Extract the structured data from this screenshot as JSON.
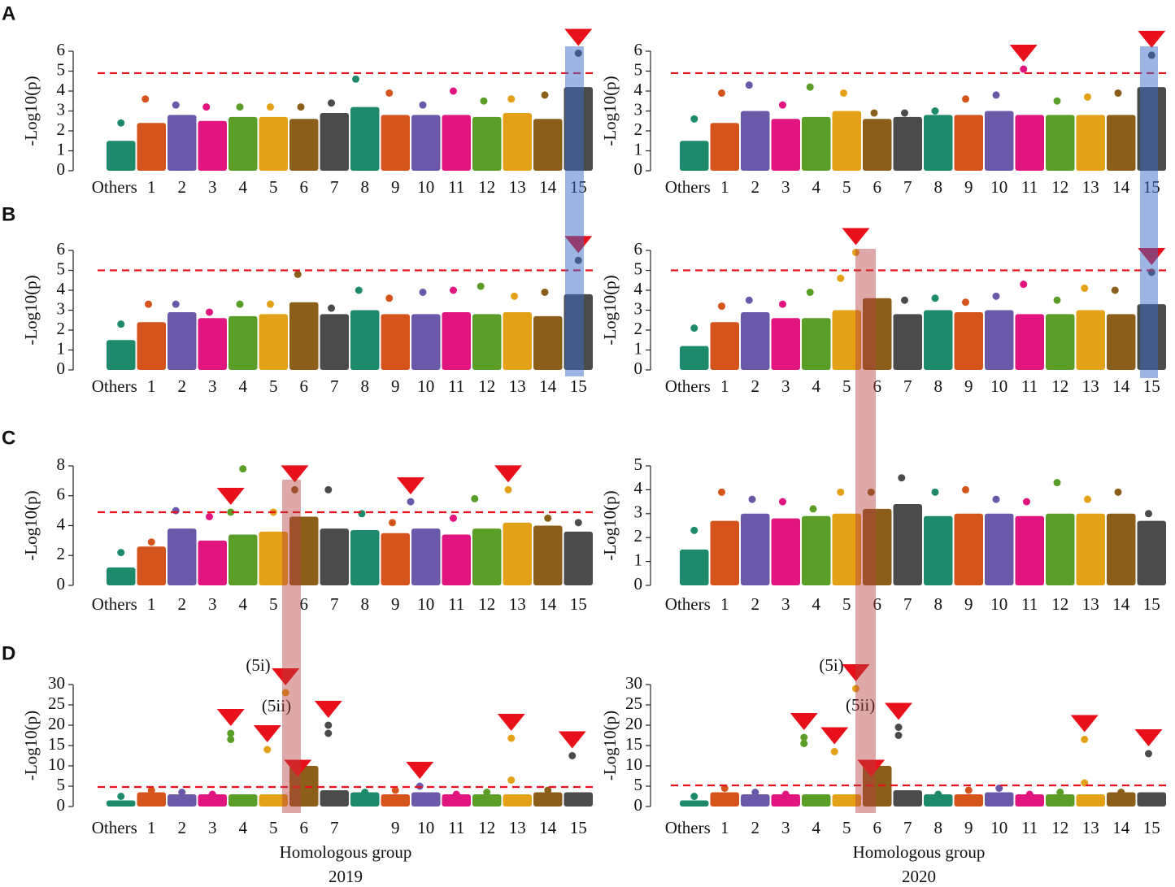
{
  "chart_data": [
    {
      "type": "manhattan",
      "panel": "A",
      "y_label": "-Log10(p)",
      "categories": [
        "Others",
        "1",
        "2",
        "3",
        "4",
        "5",
        "6",
        "7",
        "8",
        "9",
        "10",
        "11",
        "12",
        "13",
        "14",
        "15"
      ],
      "colors": [
        "#1d8a6b",
        "#d4541b",
        "#6a58a8",
        "#e0157f",
        "#5a9e28",
        "#e2a116",
        "#8b5e1a",
        "#4b4b4b",
        "#1d8a6b",
        "#d4541b",
        "#6a58a8",
        "#e0157f",
        "#5a9e28",
        "#e2a116",
        "#8b5e1a",
        "#4b4b4b"
      ],
      "band_values": [
        1.5,
        2.4,
        2.8,
        2.5,
        2.7,
        2.7,
        2.6,
        2.9,
        3.2,
        2.8,
        2.8,
        2.8,
        2.7,
        2.9,
        2.6,
        4.2
      ],
      "points": {
        "x": [
          0.5,
          1.3,
          2.3,
          3.3,
          4.4,
          5.4,
          6.4,
          7.4,
          8.2,
          9.3,
          10.4,
          11.4,
          12.4,
          13.3,
          14.4,
          15.5
        ],
        "y": [
          2.4,
          3.6,
          3.3,
          3.2,
          3.2,
          3.2,
          3.2,
          3.4,
          4.6,
          3.9,
          3.3,
          4.0,
          3.5,
          3.6,
          3.8,
          5.9
        ]
      },
      "threshold": 4.9,
      "xlim": [
        0,
        16
      ],
      "ylim": [
        0,
        6
      ],
      "yticks": [
        0,
        1,
        2,
        3,
        4,
        5,
        6
      ]
    },
    {
      "type": "manhattan",
      "y_label": "-Log10(p)",
      "categories": [
        "Others",
        "1",
        "2",
        "3",
        "4",
        "5",
        "6",
        "7",
        "8",
        "9",
        "10",
        "11",
        "12",
        "13",
        "14",
        "15"
      ],
      "colors": [
        "#1d8a6b",
        "#d4541b",
        "#6a58a8",
        "#e0157f",
        "#5a9e28",
        "#e2a116",
        "#8b5e1a",
        "#4b4b4b",
        "#1d8a6b",
        "#d4541b",
        "#6a58a8",
        "#e0157f",
        "#5a9e28",
        "#e2a116",
        "#8b5e1a",
        "#4b4b4b"
      ],
      "band_values": [
        1.5,
        2.4,
        3.0,
        2.6,
        2.7,
        3.0,
        2.6,
        2.7,
        2.8,
        2.8,
        3.0,
        2.8,
        2.8,
        2.8,
        2.8,
        4.2
      ],
      "points": {
        "x": [
          0.5,
          1.4,
          2.3,
          3.4,
          4.3,
          5.4,
          6.4,
          7.4,
          8.4,
          9.4,
          10.4,
          11.3,
          12.4,
          13.4,
          14.4,
          15.5
        ],
        "y": [
          2.6,
          3.9,
          4.3,
          3.3,
          4.2,
          3.9,
          2.9,
          2.9,
          3.0,
          3.6,
          3.8,
          5.1,
          3.5,
          3.7,
          3.9,
          5.8
        ]
      },
      "threshold": 4.9,
      "xlim": [
        0,
        16
      ],
      "ylim": [
        0,
        6
      ],
      "yticks": [
        0,
        1,
        2,
        3,
        4,
        5,
        6
      ]
    },
    {
      "type": "manhattan",
      "panel": "B",
      "y_label": "-Log10(p)",
      "categories": [
        "Others",
        "1",
        "2",
        "3",
        "4",
        "5",
        "6",
        "7",
        "8",
        "9",
        "10",
        "11",
        "12",
        "13",
        "14",
        "15"
      ],
      "colors": [
        "#1d8a6b",
        "#d4541b",
        "#6a58a8",
        "#e0157f",
        "#5a9e28",
        "#e2a116",
        "#8b5e1a",
        "#4b4b4b",
        "#1d8a6b",
        "#d4541b",
        "#6a58a8",
        "#e0157f",
        "#5a9e28",
        "#e2a116",
        "#8b5e1a",
        "#4b4b4b"
      ],
      "band_values": [
        1.5,
        2.4,
        2.9,
        2.6,
        2.7,
        2.8,
        3.4,
        2.8,
        3.0,
        2.8,
        2.8,
        2.9,
        2.8,
        2.9,
        2.7,
        3.8
      ],
      "points": {
        "x": [
          0.5,
          1.4,
          2.3,
          3.4,
          4.4,
          5.4,
          6.3,
          7.4,
          8.3,
          9.3,
          10.4,
          11.4,
          12.3,
          13.4,
          14.4,
          15.5
        ],
        "y": [
          2.3,
          3.3,
          3.3,
          2.9,
          3.3,
          3.3,
          4.8,
          3.1,
          4.0,
          3.6,
          3.9,
          4.0,
          4.2,
          3.7,
          3.9,
          5.5
        ]
      },
      "threshold": 5.0,
      "xlim": [
        0,
        16
      ],
      "ylim": [
        0,
        6
      ],
      "yticks": [
        0,
        1,
        2,
        3,
        4,
        5,
        6
      ]
    },
    {
      "type": "manhattan",
      "y_label": "-Log10(p)",
      "categories": [
        "Others",
        "1",
        "2",
        "3",
        "4",
        "5",
        "6",
        "7",
        "8",
        "9",
        "10",
        "11",
        "12",
        "13",
        "14",
        "15"
      ],
      "colors": [
        "#1d8a6b",
        "#d4541b",
        "#6a58a8",
        "#e0157f",
        "#5a9e28",
        "#e2a116",
        "#8b5e1a",
        "#4b4b4b",
        "#1d8a6b",
        "#d4541b",
        "#6a58a8",
        "#e0157f",
        "#5a9e28",
        "#e2a116",
        "#8b5e1a",
        "#4b4b4b"
      ],
      "band_values": [
        1.2,
        2.4,
        2.9,
        2.6,
        2.6,
        3.0,
        3.6,
        2.8,
        3.0,
        2.9,
        3.0,
        2.8,
        2.8,
        3.0,
        2.8,
        3.3
      ],
      "points": {
        "x": [
          0.5,
          1.4,
          2.3,
          3.4,
          4.3,
          5.3,
          5.8,
          7.4,
          8.4,
          9.4,
          10.4,
          11.3,
          12.4,
          13.3,
          14.3,
          15.5
        ],
        "y": [
          2.1,
          3.2,
          3.5,
          3.3,
          3.9,
          4.6,
          5.9,
          3.5,
          3.6,
          3.4,
          3.7,
          4.3,
          3.5,
          4.1,
          4.0,
          4.9
        ]
      },
      "threshold": 5.0,
      "xlim": [
        0,
        16
      ],
      "ylim": [
        0,
        6
      ],
      "yticks": [
        0,
        1,
        2,
        3,
        4,
        5,
        6
      ]
    },
    {
      "type": "manhattan",
      "panel": "C",
      "y_label": "-Log10(p)",
      "categories": [
        "Others",
        "1",
        "2",
        "3",
        "4",
        "5",
        "6",
        "7",
        "8",
        "9",
        "10",
        "11",
        "12",
        "13",
        "14",
        "15"
      ],
      "colors": [
        "#1d8a6b",
        "#d4541b",
        "#6a58a8",
        "#e0157f",
        "#5a9e28",
        "#e2a116",
        "#8b5e1a",
        "#4b4b4b",
        "#1d8a6b",
        "#d4541b",
        "#6a58a8",
        "#e0157f",
        "#5a9e28",
        "#e2a116",
        "#8b5e1a",
        "#4b4b4b"
      ],
      "band_values": [
        1.2,
        2.6,
        3.8,
        3.0,
        3.4,
        3.6,
        4.6,
        3.8,
        3.7,
        3.5,
        3.8,
        3.4,
        3.8,
        4.2,
        4.0,
        3.6
      ],
      "points": {
        "x": [
          0.5,
          1.5,
          2.3,
          3.4,
          4.1,
          4.5,
          5.5,
          6.2,
          7.3,
          8.4,
          9.4,
          10.0,
          11.4,
          12.1,
          13.2,
          14.5,
          15.5
        ],
        "y": [
          2.2,
          2.9,
          5.0,
          4.6,
          4.9,
          7.8,
          4.9,
          6.4,
          6.4,
          4.8,
          4.2,
          5.6,
          4.5,
          5.8,
          6.4,
          4.5,
          4.2
        ]
      },
      "threshold": 4.9,
      "xlim": [
        0,
        16
      ],
      "ylim": [
        0,
        8
      ],
      "yticks": [
        0,
        2,
        4,
        6,
        8
      ]
    },
    {
      "type": "manhattan",
      "y_label": "-Log10(p)",
      "categories": [
        "Others",
        "1",
        "2",
        "3",
        "4",
        "5",
        "6",
        "7",
        "8",
        "9",
        "10",
        "11",
        "12",
        "13",
        "14",
        "15"
      ],
      "colors": [
        "#1d8a6b",
        "#d4541b",
        "#6a58a8",
        "#e0157f",
        "#5a9e28",
        "#e2a116",
        "#8b5e1a",
        "#4b4b4b",
        "#1d8a6b",
        "#d4541b",
        "#6a58a8",
        "#e0157f",
        "#5a9e28",
        "#e2a116",
        "#8b5e1a",
        "#4b4b4b"
      ],
      "band_values": [
        1.5,
        2.7,
        3.0,
        2.8,
        2.9,
        3.0,
        3.2,
        3.4,
        2.9,
        3.0,
        3.0,
        2.9,
        3.0,
        3.0,
        3.0,
        2.7
      ],
      "points": {
        "x": [
          0.5,
          1.4,
          2.4,
          3.4,
          4.4,
          5.3,
          6.3,
          7.3,
          8.4,
          9.4,
          10.4,
          11.4,
          12.4,
          13.4,
          14.4,
          15.4
        ],
        "y": [
          2.3,
          3.9,
          3.6,
          3.5,
          3.2,
          3.9,
          3.9,
          4.5,
          3.9,
          4.0,
          3.6,
          3.5,
          4.3,
          3.6,
          3.9,
          3.0
        ]
      },
      "xlim": [
        0,
        16
      ],
      "ylim": [
        0,
        5
      ],
      "yticks": [
        0,
        1,
        2,
        3,
        4,
        5
      ]
    },
    {
      "type": "manhattan",
      "panel": "D",
      "y_label": "-Log10(p)",
      "x_label": "Homologous group",
      "year": "2019",
      "categories": [
        "Others",
        "1",
        "2",
        "3",
        "4",
        "5",
        "6",
        "7",
        null,
        "9",
        "10",
        "11",
        "12",
        "13",
        "14",
        "15"
      ],
      "colors": [
        "#1d8a6b",
        "#d4541b",
        "#6a58a8",
        "#e0157f",
        "#5a9e28",
        "#e2a116",
        "#8b5e1a",
        "#4b4b4b",
        "#1d8a6b",
        "#d4541b",
        "#6a58a8",
        "#e0157f",
        "#5a9e28",
        "#e2a116",
        "#8b5e1a",
        "#4b4b4b"
      ],
      "band_values": [
        1.5,
        3.5,
        3,
        3,
        3,
        3,
        10,
        4,
        3.5,
        3,
        3.5,
        3,
        3,
        3,
        3.5,
        3.5
      ],
      "points": {
        "x": [
          0.5,
          1.5,
          2.5,
          3.5,
          4.1,
          4.1,
          5.3,
          5.9,
          6.3,
          7.3,
          7.3,
          8.5,
          9.5,
          10.3,
          11.5,
          12.5,
          13.3,
          13.3,
          14.5,
          15.3
        ],
        "y": [
          2.5,
          4,
          3.5,
          3,
          18,
          16.5,
          14,
          28,
          5.5,
          20,
          18,
          3.5,
          4,
          5,
          3,
          3.5,
          16.8,
          6.5,
          4,
          12.5
        ]
      },
      "annotations": [
        {
          "text": "(5i)",
          "x": 5.0,
          "y": 34.4
        },
        {
          "text": "(5ii)",
          "x": 5.6,
          "y": 24.4
        }
      ],
      "threshold": 4.8,
      "xlim": [
        0,
        16
      ],
      "ylim": [
        0,
        30
      ],
      "yticks": [
        0,
        5,
        10,
        15,
        20,
        25,
        30
      ]
    },
    {
      "type": "manhattan",
      "y_label": "-Log10(p)",
      "x_label": "Homologous group",
      "year": "2020",
      "categories": [
        "Others",
        "1",
        "2",
        "3",
        "4",
        "5",
        "6",
        "7",
        "8",
        "9",
        "10",
        "11",
        "12",
        "13",
        "14",
        "15"
      ],
      "colors": [
        "#1d8a6b",
        "#d4541b",
        "#6a58a8",
        "#e0157f",
        "#5a9e28",
        "#e2a116",
        "#8b5e1a",
        "#4b4b4b",
        "#1d8a6b",
        "#d4541b",
        "#6a58a8",
        "#e0157f",
        "#5a9e28",
        "#e2a116",
        "#8b5e1a",
        "#4b4b4b"
      ],
      "band_values": [
        1.5,
        3.5,
        3,
        3,
        3,
        3,
        10,
        4,
        3,
        3,
        3.5,
        3,
        3,
        3,
        3.5,
        3.5
      ],
      "points": {
        "x": [
          0.5,
          1.5,
          2.5,
          3.5,
          4.1,
          4.1,
          5.1,
          5.8,
          6.3,
          7.2,
          7.2,
          8.5,
          9.5,
          10.5,
          11.5,
          12.5,
          13.3,
          13.3,
          14.5,
          15.4
        ],
        "y": [
          2.5,
          4.5,
          3.5,
          3,
          17,
          15.5,
          13.5,
          29,
          5.5,
          19.5,
          17.5,
          3,
          4,
          4.5,
          3,
          3.5,
          16.5,
          5.8,
          3.5,
          13
        ]
      },
      "annotations": [
        {
          "text": "(5i)",
          "x": 5.0,
          "y": 34.4
        },
        {
          "text": "(5ii)",
          "x": 5.95,
          "y": 24.6
        }
      ],
      "threshold": 5.2,
      "xlim": [
        0,
        16
      ],
      "ylim": [
        0,
        30
      ],
      "yticks": [
        0,
        5,
        10,
        15,
        20,
        25,
        30
      ]
    }
  ]
}
